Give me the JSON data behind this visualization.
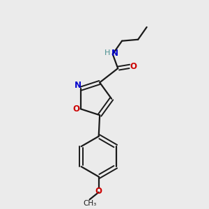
{
  "background_color": "#ebebeb",
  "bond_color": "#1a1a1a",
  "nitrogen_color": "#0000cc",
  "oxygen_color": "#cc0000",
  "nh_color": "#4a9090",
  "fig_width": 3.0,
  "fig_height": 3.0,
  "dpi": 100,
  "xlim": [
    0,
    10
  ],
  "ylim": [
    0,
    10
  ]
}
